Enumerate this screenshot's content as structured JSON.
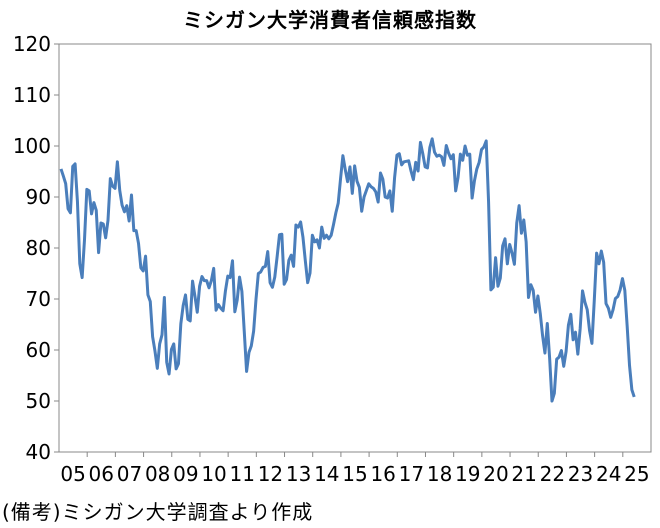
{
  "chart_data": {
    "type": "line",
    "title": "ミシガン大学消費者信頼感指数",
    "xlabel": "",
    "ylabel": "",
    "ylim": [
      40,
      120
    ],
    "y_ticks": [
      "120",
      "110",
      "100",
      "90",
      "80",
      "70",
      "60",
      "50",
      "40"
    ],
    "x_tick_labels": [
      "05",
      "06",
      "07",
      "08",
      "09",
      "10",
      "11",
      "12",
      "13",
      "14",
      "15",
      "16",
      "17",
      "18",
      "19",
      "20",
      "21",
      "22",
      "23",
      "24",
      "25"
    ],
    "grid": false,
    "legend": "none",
    "series": [
      {
        "color": "#4a7ebb",
        "x_start": "2005-01",
        "x_step": "month",
        "values": [
          95.5,
          94.1,
          92.6,
          87.7,
          86.9,
          96.0,
          96.5,
          89.1,
          76.9,
          74.2,
          81.6,
          91.5,
          91.2,
          86.7,
          88.9,
          87.4,
          79.1,
          84.9,
          84.7,
          82.0,
          85.4,
          93.6,
          92.1,
          91.7,
          96.9,
          91.3,
          88.4,
          87.1,
          88.3,
          85.3,
          90.4,
          83.4,
          83.4,
          80.9,
          76.1,
          75.5,
          78.4,
          70.8,
          69.5,
          62.6,
          59.8,
          56.4,
          61.2,
          63.0,
          70.3,
          57.6,
          55.3,
          60.1,
          61.2,
          56.3,
          57.3,
          65.1,
          68.7,
          70.8,
          66.0,
          65.7,
          73.5,
          70.6,
          67.4,
          72.5,
          74.4,
          73.6,
          73.6,
          72.2,
          73.6,
          76.0,
          67.8,
          68.9,
          68.2,
          67.7,
          71.6,
          74.5,
          74.2,
          77.5,
          67.5,
          69.8,
          74.3,
          71.5,
          63.7,
          55.8,
          59.5,
          60.8,
          63.7,
          69.9,
          75.0,
          75.3,
          76.2,
          76.4,
          79.3,
          73.2,
          72.3,
          74.3,
          78.3,
          82.6,
          82.7,
          72.9,
          73.8,
          77.6,
          78.6,
          76.4,
          84.5,
          84.1,
          85.1,
          82.1,
          77.5,
          73.2,
          75.1,
          82.5,
          81.2,
          81.6,
          80.0,
          84.1,
          81.9,
          82.5,
          81.8,
          82.5,
          84.6,
          86.9,
          88.8,
          93.6,
          98.1,
          95.4,
          93.0,
          95.9,
          90.7,
          96.1,
          93.1,
          91.9,
          87.2,
          90.0,
          91.3,
          92.6,
          92.0,
          91.7,
          91.0,
          89.0,
          94.7,
          93.5,
          90.0,
          89.8,
          91.2,
          87.2,
          93.8,
          98.2,
          98.5,
          96.3,
          96.9,
          97.0,
          97.1,
          95.1,
          93.4,
          96.8,
          95.1,
          100.7,
          98.5,
          95.9,
          95.7,
          99.7,
          101.4,
          98.8,
          98.0,
          98.2,
          97.9,
          96.2,
          100.1,
          98.6,
          97.5,
          98.3,
          91.2,
          93.8,
          98.4,
          97.2,
          100.0,
          98.2,
          98.4,
          89.8,
          93.2,
          95.5,
          96.8,
          99.3,
          99.8,
          101.0,
          89.1,
          71.8,
          72.3,
          78.1,
          72.5,
          74.1,
          80.4,
          81.8,
          76.9,
          80.7,
          79.0,
          76.8,
          84.9,
          88.3,
          82.9,
          85.5,
          81.2,
          70.3,
          72.8,
          71.7,
          67.4,
          70.6,
          67.2,
          62.8,
          59.4,
          65.2,
          58.4,
          50.0,
          51.5,
          58.2,
          58.6,
          59.9,
          56.8,
          59.7,
          64.9,
          67.0,
          62.0,
          63.5,
          59.2,
          64.2,
          71.6,
          69.4,
          67.9,
          63.8,
          61.3,
          69.7,
          79.0,
          76.9,
          79.4,
          77.2,
          69.1,
          68.2,
          66.4,
          67.9,
          70.1,
          70.5,
          71.8,
          74.0,
          71.7,
          64.7,
          57.0,
          52.2,
          50.8
        ]
      }
    ],
    "note": "(備考)ミシガン大学調査より作成"
  }
}
